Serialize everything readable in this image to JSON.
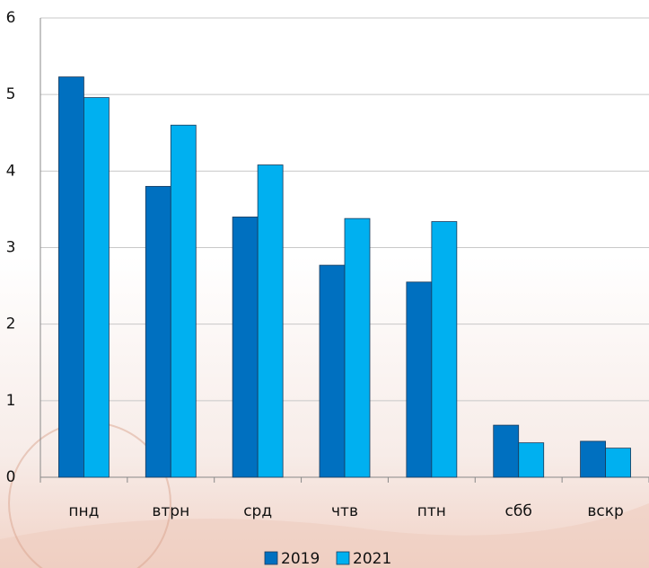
{
  "chart_data": {
    "type": "bar",
    "categories": [
      "пнд",
      "втрн",
      "срд",
      "чтв",
      "птн",
      "сбб",
      "вскр"
    ],
    "series": [
      {
        "name": "2019",
        "color": "#0070c0",
        "values": [
          5.23,
          3.8,
          3.4,
          2.77,
          2.55,
          0.68,
          0.47
        ]
      },
      {
        "name": "2021",
        "color": "#00b0f0",
        "values": [
          4.96,
          4.6,
          4.08,
          3.38,
          3.34,
          0.45,
          0.38
        ]
      }
    ],
    "ylim": [
      0,
      6
    ],
    "yticks": [
      0,
      1,
      2,
      3,
      4,
      5,
      6
    ],
    "grid": true,
    "legend": "bottom"
  }
}
